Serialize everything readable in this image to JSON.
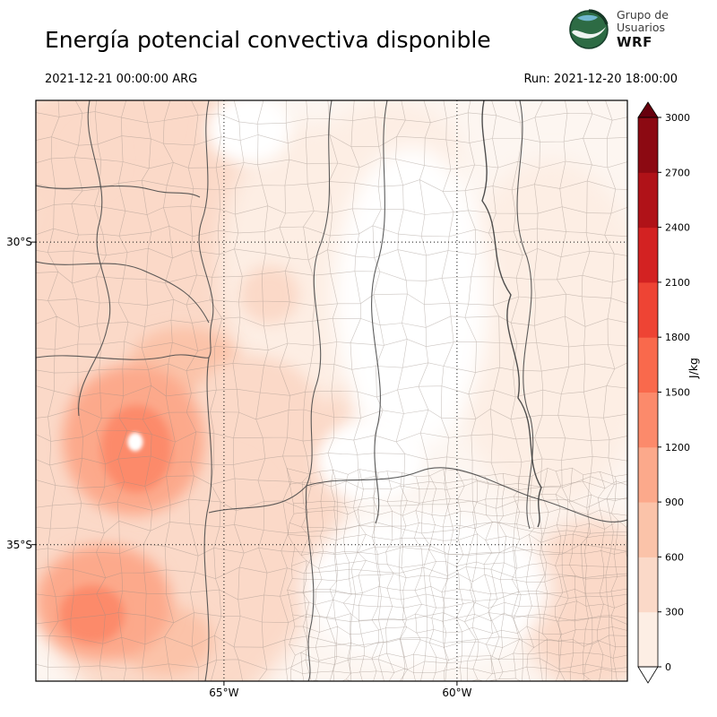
{
  "header": {
    "title": "Energía potencial convectiva disponible",
    "valid_time": "2021-12-21 00:00:00 ARG",
    "run_label": "Run: 2021-12-20 18:00:00",
    "logo": {
      "line1": "Grupo de",
      "line2": "Usuarios",
      "line3": "WRF"
    }
  },
  "chart_data": {
    "type": "heatmap",
    "variable": "CAPE",
    "title": "Energía potencial convectiva disponible",
    "units": "J/kg",
    "valid_time": "2021-12-21 00:00:00 ARG",
    "model_run": "2021-12-20 18:00:00",
    "max_value_approx": 1300,
    "colorbar": {
      "label": "J/kg",
      "ticks": [
        0,
        300,
        600,
        900,
        1200,
        1500,
        1800,
        2100,
        2400,
        2700,
        3000
      ],
      "bin_colors": [
        "#fdeee4",
        "#fbd9c8",
        "#fbc3a9",
        "#fca98b",
        "#fc8a6b",
        "#f9694c",
        "#ee4434",
        "#d32222",
        "#b01218",
        "#8c0912"
      ],
      "under_color": "#ffffff",
      "over_color": "#67000d"
    },
    "axes": {
      "lat_ticks": [
        {
          "label": "30°S",
          "frac": 0.244
        },
        {
          "label": "35°S",
          "frac": 0.765
        }
      ],
      "lon_ticks": [
        {
          "label": "65°W",
          "frac": 0.318
        },
        {
          "label": "60°W",
          "frac": 0.712
        }
      ],
      "grid": "dotted"
    },
    "background_fill": "#fdf6f1",
    "field_blobs": [
      {
        "cx": 0.23,
        "cy": 0.52,
        "rx": 0.31,
        "ry": 0.55,
        "value": 350,
        "blur": "lg"
      },
      {
        "cx": 0.14,
        "cy": 0.09,
        "rx": 0.22,
        "ry": 0.13,
        "value": 350,
        "blur": "lg"
      },
      {
        "cx": 0.46,
        "cy": 0.28,
        "rx": 0.15,
        "ry": 0.24,
        "value": 250,
        "blur": "lg"
      },
      {
        "cx": 0.87,
        "cy": 0.4,
        "rx": 0.17,
        "ry": 0.3,
        "value": 250,
        "blur": "lg"
      },
      {
        "cx": 0.94,
        "cy": 0.87,
        "rx": 0.12,
        "ry": 0.15,
        "value": 350,
        "blur": "lg"
      },
      {
        "cx": 0.6,
        "cy": 0.1,
        "rx": 0.12,
        "ry": 0.1,
        "value": 250,
        "blur": "lg"
      },
      {
        "cx": 0.635,
        "cy": 0.34,
        "rx": 0.13,
        "ry": 0.26,
        "value": 0,
        "blur": "lg"
      },
      {
        "cx": 0.66,
        "cy": 0.84,
        "rx": 0.21,
        "ry": 0.13,
        "value": 0,
        "blur": "lg"
      },
      {
        "cx": 0.36,
        "cy": 0.05,
        "rx": 0.07,
        "ry": 0.06,
        "value": 0,
        "blur": "md"
      },
      {
        "cx": 0.565,
        "cy": 0.62,
        "rx": 0.09,
        "ry": 0.07,
        "value": 0,
        "blur": "md"
      },
      {
        "cx": 0.25,
        "cy": 0.45,
        "rx": 0.09,
        "ry": 0.06,
        "value": 650,
        "blur": "md"
      },
      {
        "cx": 0.37,
        "cy": 0.54,
        "rx": 0.11,
        "ry": 0.1,
        "value": 500,
        "blur": "md"
      },
      {
        "cx": 0.3,
        "cy": 0.7,
        "rx": 0.1,
        "ry": 0.09,
        "value": 450,
        "blur": "md"
      },
      {
        "cx": 0.22,
        "cy": 0.93,
        "rx": 0.08,
        "ry": 0.06,
        "value": 650,
        "blur": "md"
      },
      {
        "cx": 0.395,
        "cy": 0.335,
        "rx": 0.05,
        "ry": 0.05,
        "value": 450,
        "blur": "md"
      },
      {
        "cx": 0.18,
        "cy": 0.035,
        "rx": 0.05,
        "ry": 0.04,
        "value": 500,
        "blur": "md"
      },
      {
        "cx": 0.1,
        "cy": 0.1,
        "rx": 0.04,
        "ry": 0.05,
        "value": 450,
        "blur": "md"
      },
      {
        "cx": 0.165,
        "cy": 0.585,
        "rx": 0.12,
        "ry": 0.13,
        "value": 950,
        "blur": "md"
      },
      {
        "cx": 0.17,
        "cy": 0.6,
        "rx": 0.06,
        "ry": 0.075,
        "value": 1300,
        "blur": "sm"
      },
      {
        "cx": 0.115,
        "cy": 0.865,
        "rx": 0.115,
        "ry": 0.1,
        "value": 950,
        "blur": "md"
      },
      {
        "cx": 0.095,
        "cy": 0.885,
        "rx": 0.055,
        "ry": 0.05,
        "value": 1300,
        "blur": "sm"
      },
      {
        "cx": 0.168,
        "cy": 0.588,
        "rx": 0.013,
        "ry": 0.016,
        "value": 0,
        "blur": "xs"
      }
    ]
  }
}
